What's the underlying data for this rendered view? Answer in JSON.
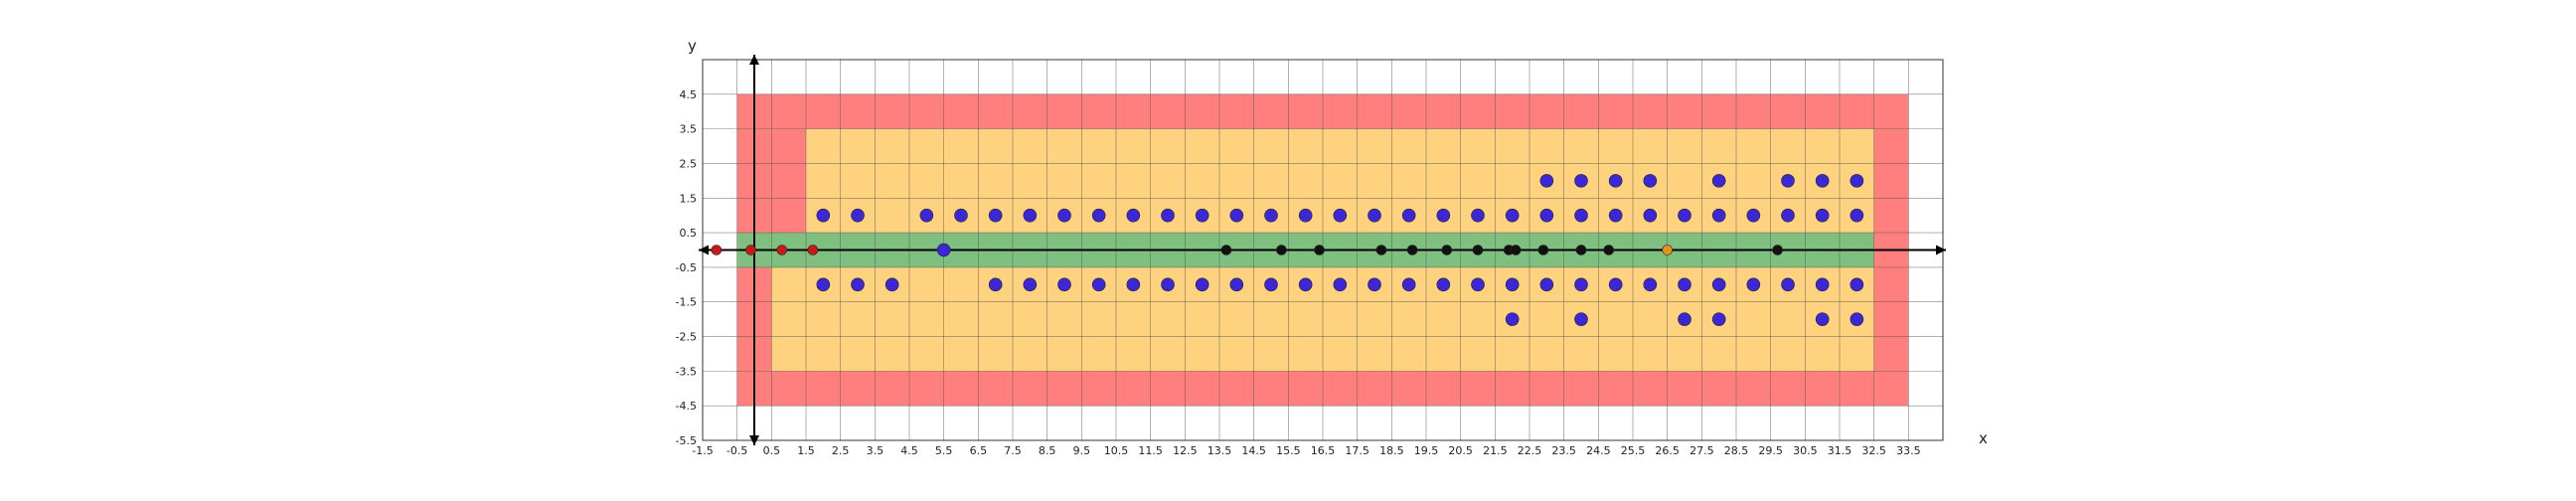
{
  "chart_data": {
    "type": "scatter",
    "title": "",
    "xlabel": "x",
    "ylabel": "y",
    "xlim": [
      -1.5,
      34.5
    ],
    "ylim": [
      -5.5,
      5.5
    ],
    "grid": true,
    "xticks": [
      "-1.5",
      "-0.5",
      "0.5",
      "1.5",
      "2.5",
      "3.5",
      "4.5",
      "5.5",
      "6.5",
      "7.5",
      "8.5",
      "9.5",
      "10.5",
      "11.5",
      "12.5",
      "13.5",
      "14.5",
      "15.5",
      "16.5",
      "17.5",
      "18.5",
      "19.5",
      "20.5",
      "21.5",
      "22.5",
      "23.5",
      "24.5",
      "25.5",
      "26.5",
      "27.5",
      "28.5",
      "29.5",
      "30.5",
      "31.5",
      "32.5",
      "33.5"
    ],
    "yticks": [
      "4.5",
      "3.5",
      "2.5",
      "1.5",
      "0.5",
      "-0.5",
      "-1.5",
      "-2.5",
      "-3.5",
      "-4.5",
      "-5.5"
    ],
    "zones": [
      {
        "color": "#ff7f7f",
        "x": [
          -0.5,
          33.5
        ],
        "y": [
          -4.5,
          4.5
        ]
      },
      {
        "color": "#fed27f",
        "x": [
          1.5,
          32.5
        ],
        "y": [
          0.5,
          3.5
        ]
      },
      {
        "color": "#fed27f",
        "x": [
          0.5,
          32.5
        ],
        "y": [
          -3.5,
          -0.5
        ]
      },
      {
        "color": "#7fbf7f",
        "x": [
          -0.5,
          32.5
        ],
        "y": [
          -0.5,
          0.5
        ]
      }
    ],
    "series": [
      {
        "color": "#3b27d6",
        "points": [
          [
            2,
            1
          ],
          [
            3,
            1
          ],
          [
            5,
            1
          ],
          [
            6,
            1
          ],
          [
            7,
            1
          ],
          [
            8,
            1
          ],
          [
            9,
            1
          ],
          [
            10,
            1
          ],
          [
            11,
            1
          ],
          [
            12,
            1
          ],
          [
            13,
            1
          ],
          [
            14,
            1
          ],
          [
            15,
            1
          ],
          [
            16,
            1
          ],
          [
            17,
            1
          ],
          [
            18,
            1
          ],
          [
            19,
            1
          ],
          [
            20,
            1
          ],
          [
            21,
            1
          ],
          [
            22,
            1
          ],
          [
            23,
            1
          ],
          [
            24,
            1
          ],
          [
            25,
            1
          ],
          [
            26,
            1
          ],
          [
            27,
            1
          ],
          [
            28,
            1
          ],
          [
            29,
            1
          ],
          [
            30,
            1
          ],
          [
            31,
            1
          ],
          [
            32,
            1
          ],
          [
            23,
            2
          ],
          [
            24,
            2
          ],
          [
            25,
            2
          ],
          [
            26,
            2
          ],
          [
            28,
            2
          ],
          [
            30,
            2
          ],
          [
            31,
            2
          ],
          [
            32,
            2
          ],
          [
            2,
            -1
          ],
          [
            3,
            -1
          ],
          [
            4,
            -1
          ],
          [
            7,
            -1
          ],
          [
            8,
            -1
          ],
          [
            9,
            -1
          ],
          [
            10,
            -1
          ],
          [
            11,
            -1
          ],
          [
            12,
            -1
          ],
          [
            13,
            -1
          ],
          [
            14,
            -1
          ],
          [
            15,
            -1
          ],
          [
            16,
            -1
          ],
          [
            17,
            -1
          ],
          [
            18,
            -1
          ],
          [
            19,
            -1
          ],
          [
            20,
            -1
          ],
          [
            21,
            -1
          ],
          [
            22,
            -1
          ],
          [
            23,
            -1
          ],
          [
            24,
            -1
          ],
          [
            25,
            -1
          ],
          [
            26,
            -1
          ],
          [
            27,
            -1
          ],
          [
            28,
            -1
          ],
          [
            29,
            -1
          ],
          [
            30,
            -1
          ],
          [
            31,
            -1
          ],
          [
            32,
            -1
          ],
          [
            22,
            -2
          ],
          [
            24,
            -2
          ],
          [
            27,
            -2
          ],
          [
            28,
            -2
          ],
          [
            31,
            -2
          ],
          [
            32,
            -2
          ],
          [
            5.5,
            0
          ]
        ]
      },
      {
        "color": "#111111",
        "points": [
          [
            13.7,
            0
          ],
          [
            15.3,
            0
          ],
          [
            16.4,
            0
          ],
          [
            18.2,
            0
          ],
          [
            19.1,
            0
          ],
          [
            20.1,
            0
          ],
          [
            21.0,
            0
          ],
          [
            21.9,
            0
          ],
          [
            22.1,
            0
          ],
          [
            22.9,
            0
          ],
          [
            24.0,
            0
          ],
          [
            24.8,
            0
          ],
          [
            29.7,
            0
          ]
        ]
      },
      {
        "color": "#c81919",
        "points": [
          [
            -1.1,
            0
          ],
          [
            -0.1,
            0
          ],
          [
            0.8,
            0
          ],
          [
            1.7,
            0
          ]
        ]
      },
      {
        "color": "#e8921c",
        "points": [
          [
            26.5,
            0
          ]
        ]
      }
    ]
  }
}
